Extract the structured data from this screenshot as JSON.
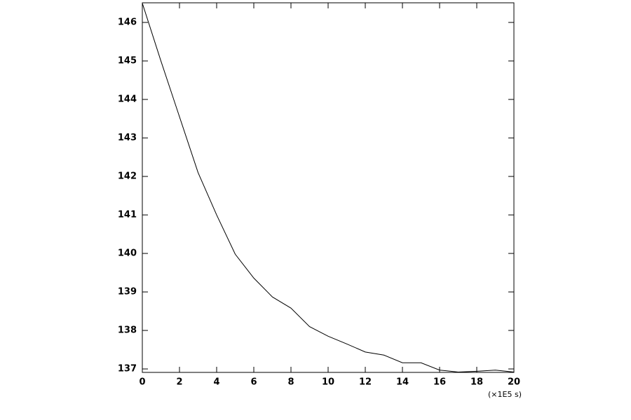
{
  "chart_data": {
    "type": "line",
    "x_label": "(×1E5 s)",
    "x": [
      0,
      1,
      2,
      3,
      4,
      5,
      6,
      7,
      8,
      9,
      10,
      11,
      12,
      13,
      14,
      15,
      16,
      17,
      18,
      19,
      20
    ],
    "series": [
      {
        "color": "#000000",
        "values": [
          146.5,
          145.0,
          143.55,
          142.1,
          141.0,
          139.98,
          139.36,
          138.87,
          138.58,
          138.1,
          137.85,
          137.65,
          137.44,
          137.36,
          137.16,
          137.16,
          136.97,
          136.92,
          136.94,
          136.97,
          136.92
        ]
      }
    ],
    "xlim": [
      0,
      20
    ],
    "xticks": [
      0,
      2,
      4,
      6,
      8,
      10,
      12,
      14,
      16,
      18,
      20
    ],
    "ylim": [
      136.91,
      146.51
    ],
    "yticks": [
      137,
      138,
      139,
      140,
      141,
      142,
      143,
      144,
      145,
      146
    ],
    "grid": false
  }
}
